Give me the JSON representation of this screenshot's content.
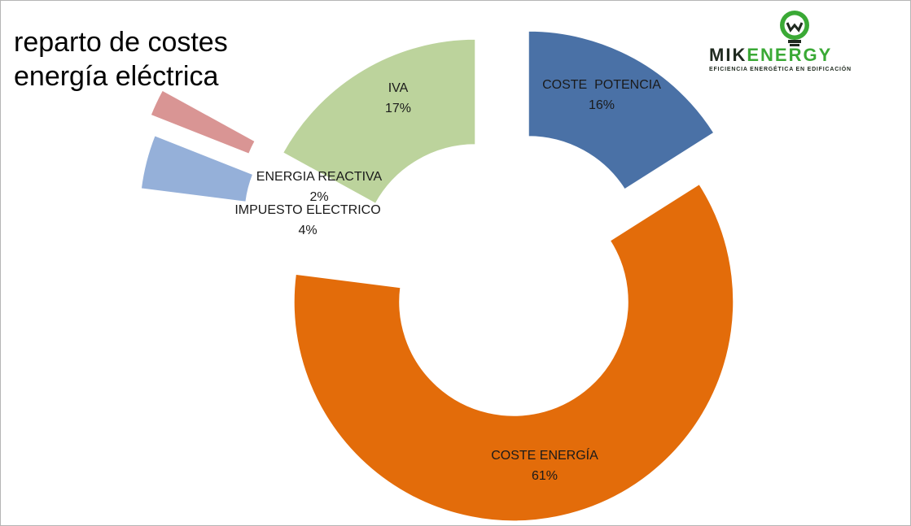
{
  "title_lines": [
    "reparto de costes",
    "energía eléctrica"
  ],
  "logo": {
    "brand_part1": "MIK",
    "brand_part2": "ENERGY",
    "tagline": "EFICIENCIA ENERGÉTICA EN EDIFICACIÓN",
    "icon": "lightbulb-logo-icon",
    "colors": {
      "dark": "#1f2a1f",
      "green": "#3aa935"
    }
  },
  "chart_data": {
    "type": "pie",
    "variant": "exploded-doughnut",
    "title": "reparto de costes energía eléctrica",
    "slices": [
      {
        "name": "COSTE  POTENCIA",
        "value": 16,
        "label": "16%",
        "color": "#4a71a6"
      },
      {
        "name": "COSTE ENERGÍA",
        "value": 61,
        "label": "61%",
        "color": "#e36c0a"
      },
      {
        "name": "IMPUESTO ELECTRICO",
        "value": 4,
        "label": "4%",
        "color": "#95b0d9"
      },
      {
        "name": "ENERGIA REACTIVA",
        "value": 2,
        "label": "2%",
        "color": "#d99594"
      },
      {
        "name": "IVA",
        "value": 17,
        "label": "17%",
        "color": "#bcd39c"
      }
    ],
    "legend": "none"
  }
}
